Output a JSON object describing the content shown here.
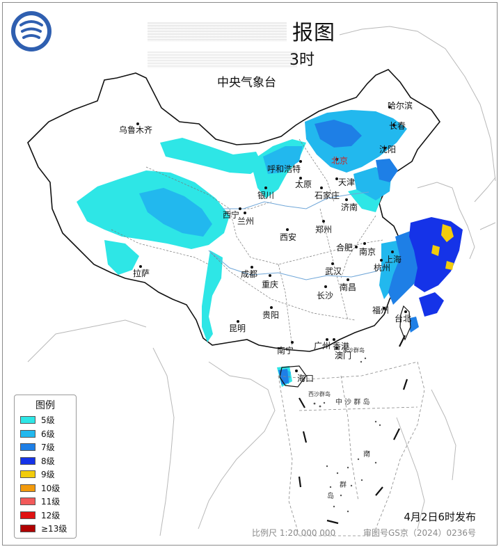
{
  "header": {
    "title": "报图",
    "subtitle": "3时",
    "agency": "中央气象台"
  },
  "legend": {
    "title": "图例",
    "items": [
      {
        "label": "5级",
        "color": "#2ee6e6"
      },
      {
        "label": "6级",
        "color": "#22b8ee"
      },
      {
        "label": "7级",
        "color": "#1e7fe6"
      },
      {
        "label": "8级",
        "color": "#1533e8"
      },
      {
        "label": "9级",
        "color": "#f2cc0c"
      },
      {
        "label": "10级",
        "color": "#f29a0c"
      },
      {
        "label": "11级",
        "color": "#f25a5a"
      },
      {
        "label": "12级",
        "color": "#e01212"
      },
      {
        "label": "≥13级",
        "color": "#b00000"
      }
    ]
  },
  "cities": [
    {
      "id": "harbin",
      "name": "哈尔滨"
    },
    {
      "id": "changchun",
      "name": "长春"
    },
    {
      "id": "shenyang",
      "name": "沈阳"
    },
    {
      "id": "urumqi",
      "name": "乌鲁木齐"
    },
    {
      "id": "hohhot",
      "name": "呼和浩特"
    },
    {
      "id": "beijing",
      "name": "北京"
    },
    {
      "id": "tianjin",
      "name": "天津"
    },
    {
      "id": "taiyuan",
      "name": "太原"
    },
    {
      "id": "shijiazhuang",
      "name": "石家庄"
    },
    {
      "id": "yinchuan",
      "name": "银川"
    },
    {
      "id": "jinan",
      "name": "济南"
    },
    {
      "id": "xining",
      "name": "西宁"
    },
    {
      "id": "lanzhou",
      "name": "兰州"
    },
    {
      "id": "zhengzhou",
      "name": "郑州"
    },
    {
      "id": "xian",
      "name": "西安"
    },
    {
      "id": "hefei",
      "name": "合肥"
    },
    {
      "id": "nanjing",
      "name": "南京"
    },
    {
      "id": "shanghai",
      "name": "上海"
    },
    {
      "id": "hangzhou",
      "name": "杭州"
    },
    {
      "id": "lhasa",
      "name": "拉萨"
    },
    {
      "id": "chengdu",
      "name": "成都"
    },
    {
      "id": "wuhan",
      "name": "武汉"
    },
    {
      "id": "chongqing",
      "name": "重庆"
    },
    {
      "id": "nanchang",
      "name": "南昌"
    },
    {
      "id": "changsha",
      "name": "长沙"
    },
    {
      "id": "fuzhou",
      "name": "福州"
    },
    {
      "id": "taibei",
      "name": "台北"
    },
    {
      "id": "guiyang",
      "name": "贵阳"
    },
    {
      "id": "kunming",
      "name": "昆明"
    },
    {
      "id": "guangzhou",
      "name": "广州"
    },
    {
      "id": "hongkong",
      "name": "香港"
    },
    {
      "id": "macau",
      "name": "澳门"
    },
    {
      "id": "nanning",
      "name": "南宁"
    },
    {
      "id": "haikou",
      "name": "海口"
    }
  ],
  "sea_labels": {
    "dongsha": "东沙群岛",
    "xisha": "西沙群岛",
    "zhongsha": "中 沙 群 岛",
    "nansha_1": "南",
    "nansha_2": "群",
    "nansha_3": "岛"
  },
  "footer": {
    "issue_time": "4月2日6时发布",
    "scale": "比例尺 1:20 000 000",
    "approval": "审图号GS京（2024）0236号"
  }
}
